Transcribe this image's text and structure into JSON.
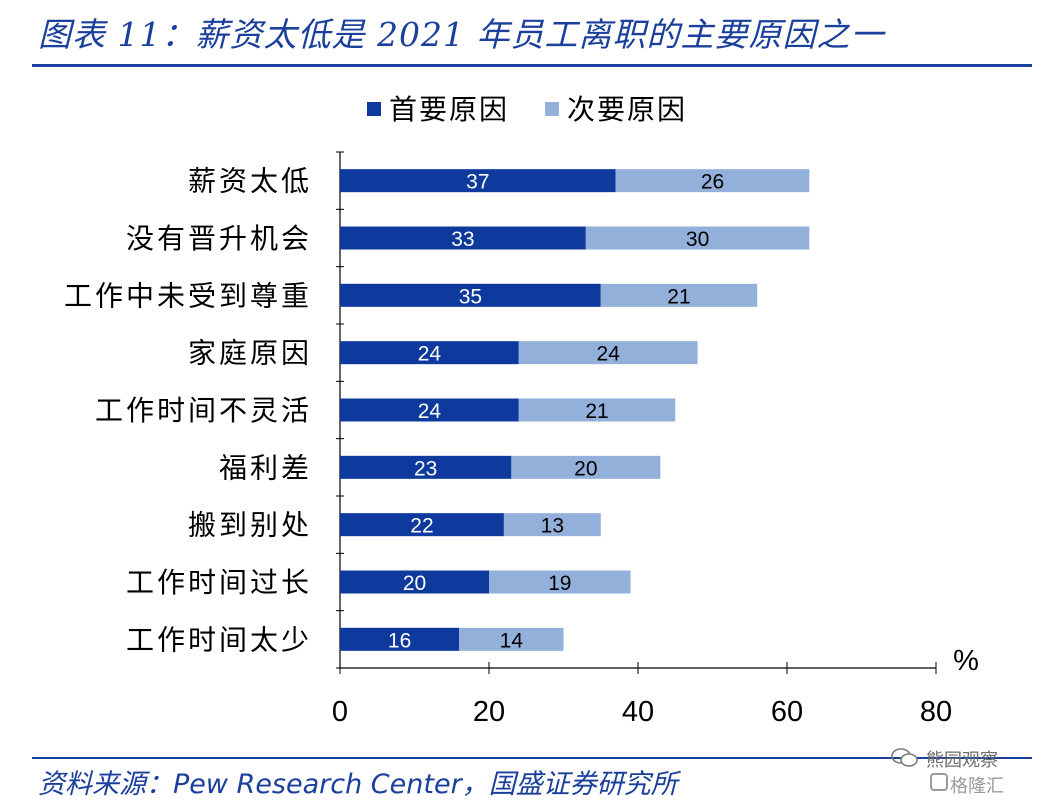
{
  "figure": {
    "title": "图表 11：薪资太低是 2021 年员工离职的主要原因之一",
    "source": "资料来源：Pew Research Center，国盛证券研究所"
  },
  "watermark": {
    "line1": "熊园观察",
    "line2": "格隆汇"
  },
  "chart_data": {
    "type": "bar",
    "orientation": "horizontal",
    "stacked": true,
    "categories": [
      "薪资太低",
      "没有晋升机会",
      "工作中未受到尊重",
      "家庭原因",
      "工作时间不灵活",
      "福利差",
      "搬到别处",
      "工作时间过长",
      "工作时间太少"
    ],
    "series": [
      {
        "name": "首要原因",
        "color": "#0d3a9c",
        "values": [
          37,
          33,
          35,
          24,
          24,
          23,
          22,
          20,
          16
        ]
      },
      {
        "name": "次要原因",
        "color": "#93b0db",
        "values": [
          26,
          30,
          21,
          24,
          21,
          20,
          13,
          19,
          14
        ]
      }
    ],
    "xlim": [
      0,
      80
    ],
    "xticks": [
      0,
      20,
      40,
      60,
      80
    ],
    "unit_label": "%",
    "legend_position": "top",
    "grid": false
  }
}
